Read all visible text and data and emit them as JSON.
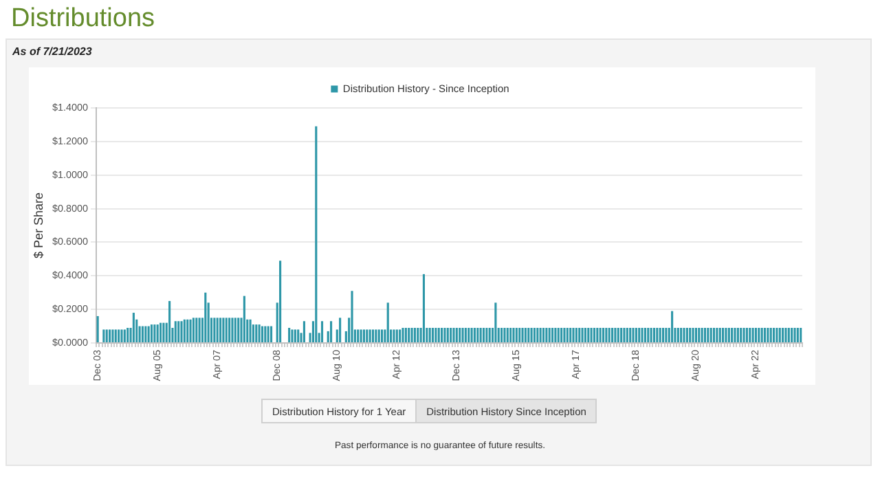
{
  "chart_data": {
    "type": "bar",
    "title": "Distributions",
    "subtitle": "As of 7/21/2023",
    "ylabel": "$ Per Share",
    "annotations": [
      "Distribution History for 1 Year",
      "Distribution History Since Inception",
      "Past performance is no guarantee of future results."
    ],
    "categories": [
      "Dec 03",
      null,
      null,
      null,
      null,
      null,
      null,
      null,
      null,
      null,
      null,
      null,
      null,
      null,
      null,
      null,
      null,
      null,
      null,
      null,
      "Aug 05",
      null,
      null,
      null,
      null,
      null,
      null,
      null,
      null,
      null,
      null,
      null,
      null,
      null,
      null,
      null,
      null,
      null,
      null,
      null,
      "Apr 07",
      null,
      null,
      null,
      null,
      null,
      null,
      null,
      null,
      null,
      null,
      null,
      null,
      null,
      null,
      null,
      null,
      null,
      null,
      null,
      "Dec 08",
      null,
      null,
      null,
      null,
      null,
      null,
      null,
      null,
      null,
      null,
      null,
      null,
      null,
      null,
      null,
      null,
      null,
      null,
      null,
      "Aug 10",
      null,
      null,
      null,
      null,
      null,
      null,
      null,
      null,
      null,
      null,
      null,
      null,
      null,
      null,
      null,
      null,
      null,
      null,
      null,
      "Apr 12",
      null,
      null,
      null,
      null,
      null,
      null,
      null,
      null,
      null,
      null,
      null,
      null,
      null,
      null,
      null,
      null,
      null,
      null,
      null,
      "Dec 13",
      null,
      null,
      null,
      null,
      null,
      null,
      null,
      null,
      null,
      null,
      null,
      null,
      null,
      null,
      null,
      null,
      null,
      null,
      null,
      "Aug 15",
      null,
      null,
      null,
      null,
      null,
      null,
      null,
      null,
      null,
      null,
      null,
      null,
      null,
      null,
      null,
      null,
      null,
      null,
      null,
      "Apr 17",
      null,
      null,
      null,
      null,
      null,
      null,
      null,
      null,
      null,
      null,
      null,
      null,
      null,
      null,
      null,
      null,
      null,
      null,
      null,
      "Dec 18",
      null,
      null,
      null,
      null,
      null,
      null,
      null,
      null,
      null,
      null,
      null,
      null,
      null,
      null,
      null,
      null,
      null,
      null,
      null,
      "Aug 20",
      null,
      null,
      null,
      null,
      null,
      null,
      null,
      null,
      null,
      null,
      null,
      null,
      null,
      null,
      null,
      null,
      null,
      null,
      null,
      "Apr 22",
      null,
      null,
      null,
      null,
      null,
      null,
      null,
      null,
      null,
      null,
      null,
      null,
      null,
      null,
      null
    ],
    "series": [
      {
        "name": "Distribution History - Since Inception",
        "color": "#2e97a8",
        "values": [
          0.16,
          null,
          0.08,
          0.08,
          0.08,
          0.08,
          0.08,
          0.08,
          0.08,
          0.08,
          0.09,
          0.09,
          0.18,
          0.14,
          0.1,
          0.1,
          0.1,
          0.1,
          0.11,
          0.11,
          0.11,
          0.12,
          0.12,
          0.12,
          0.25,
          0.09,
          0.13,
          0.13,
          0.13,
          0.14,
          0.14,
          0.14,
          0.15,
          0.15,
          0.15,
          0.15,
          0.3,
          0.24,
          0.15,
          0.15,
          0.15,
          0.15,
          0.15,
          0.15,
          0.15,
          0.15,
          0.15,
          0.15,
          0.15,
          0.28,
          0.14,
          0.14,
          0.11,
          0.11,
          0.11,
          0.1,
          0.1,
          0.1,
          0.1,
          null,
          0.24,
          0.49,
          null,
          null,
          0.09,
          0.08,
          0.08,
          0.08,
          0.06,
          0.13,
          null,
          0.06,
          0.13,
          1.29,
          0.06,
          0.13,
          null,
          0.07,
          0.13,
          null,
          0.08,
          0.15,
          null,
          0.07,
          0.15,
          0.31,
          0.08,
          0.08,
          0.08,
          0.08,
          0.08,
          0.08,
          0.08,
          0.08,
          0.08,
          0.08,
          0.08,
          0.24,
          0.08,
          0.08,
          0.08,
          0.08,
          0.09,
          0.09,
          0.09,
          0.09,
          0.09,
          0.09,
          0.09,
          0.41,
          0.09,
          0.09,
          0.09,
          0.09,
          0.09,
          0.09,
          0.09,
          0.09,
          0.09,
          0.09,
          0.09,
          0.09,
          0.09,
          0.09,
          0.09,
          0.09,
          0.09,
          0.09,
          0.09,
          0.09,
          0.09,
          0.09,
          0.09,
          0.24,
          0.09,
          0.09,
          0.09,
          0.09,
          0.09,
          0.09,
          0.09,
          0.09,
          0.09,
          0.09,
          0.09,
          0.09,
          0.09,
          0.09,
          0.09,
          0.09,
          0.09,
          0.09,
          0.09,
          0.09,
          0.09,
          0.09,
          0.09,
          0.09,
          0.09,
          0.09,
          0.09,
          0.09,
          0.09,
          0.09,
          0.09,
          0.09,
          0.09,
          0.09,
          0.09,
          0.09,
          0.09,
          0.09,
          0.09,
          0.09,
          0.09,
          0.09,
          0.09,
          0.09,
          0.09,
          0.09,
          0.09,
          0.09,
          0.09,
          0.09,
          0.09,
          0.09,
          0.09,
          0.09,
          0.09,
          0.09,
          0.09,
          0.09,
          0.19,
          0.09,
          0.09,
          0.09,
          0.09,
          0.09,
          0.09,
          0.09,
          0.09,
          0.09,
          0.09,
          0.09,
          0.09,
          0.09,
          0.09,
          0.09,
          0.09,
          0.09,
          0.09,
          0.09,
          0.09,
          0.09,
          0.09,
          0.09,
          0.09,
          0.09,
          0.09,
          0.09,
          0.09,
          0.09,
          0.09,
          0.09,
          0.09,
          0.09,
          0.09,
          0.09,
          0.09,
          0.09,
          0.09,
          0.09,
          0.09,
          0.09,
          0.09,
          0.09
        ]
      }
    ],
    "ylim": [
      0,
      1.4
    ],
    "yticks": [
      {
        "value": 0,
        "label": "$0.0000"
      },
      {
        "value": 0.2,
        "label": "$0.2000"
      },
      {
        "value": 0.4,
        "label": "$0.4000"
      },
      {
        "value": 0.6,
        "label": "$0.6000"
      },
      {
        "value": 0.8,
        "label": "$0.8000"
      },
      {
        "value": 1,
        "label": "$1.0000"
      },
      {
        "value": 1.2,
        "label": "$1.2000"
      },
      {
        "value": 1.4,
        "label": "$1.4000"
      }
    ],
    "grid": "y",
    "legend": "top"
  }
}
